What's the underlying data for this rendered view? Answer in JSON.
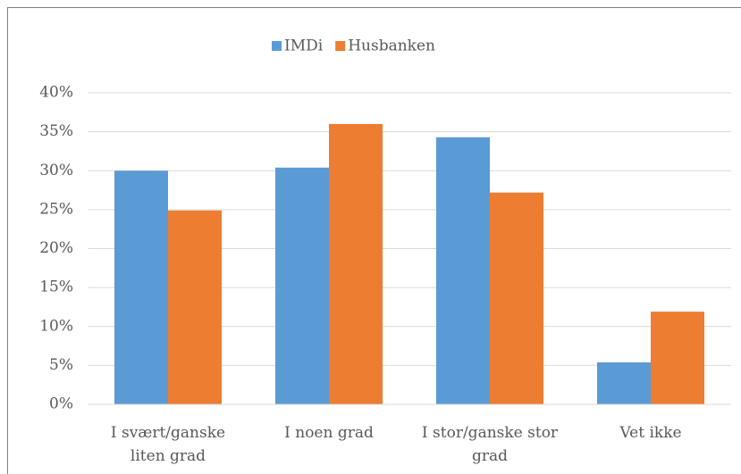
{
  "chart_data": {
    "type": "bar",
    "categories": [
      "I svært/ganske liten grad",
      "I noen grad",
      "I stor/ganske stor grad",
      "Vet ikke"
    ],
    "series": [
      {
        "name": "IMDi",
        "color": "#5b9bd5",
        "values": [
          30,
          30.4,
          34.3,
          5.4
        ]
      },
      {
        "name": "Husbanken",
        "color": "#ed7d31",
        "values": [
          24.9,
          36,
          27.2,
          11.9
        ]
      }
    ],
    "ylim": [
      0,
      40
    ],
    "yticks": [
      {
        "value": 0,
        "label": "0%"
      },
      {
        "value": 5,
        "label": "5%"
      },
      {
        "value": 10,
        "label": "10%"
      },
      {
        "value": 15,
        "label": "15%"
      },
      {
        "value": 20,
        "label": "20%"
      },
      {
        "value": 25,
        "label": "25%"
      },
      {
        "value": 30,
        "label": "30%"
      },
      {
        "value": 35,
        "label": "35%"
      },
      {
        "value": 40,
        "label": "40%"
      }
    ],
    "grid": true,
    "legend": "top"
  }
}
